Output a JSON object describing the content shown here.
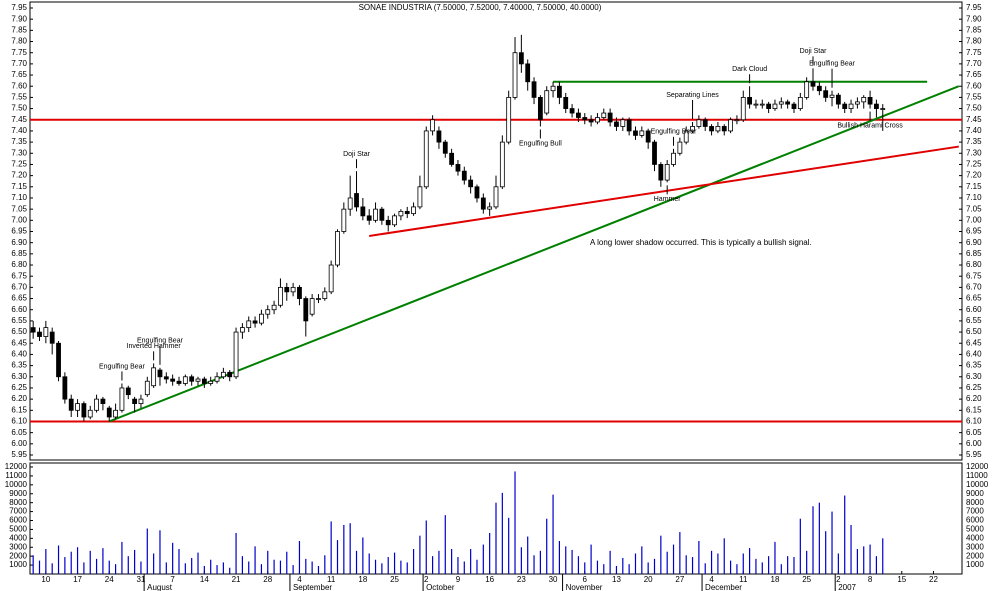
{
  "chart_data": {
    "type": "candlestick",
    "title": "SONAE INDUSTRIA (7.50000, 7.52000, 7.40000, 7.50000, 40.0000)",
    "categories": [
      null,
      null,
      "10",
      null,
      null,
      null,
      null,
      "17",
      null,
      null,
      null,
      null,
      "24",
      null,
      null,
      null,
      null,
      "31",
      null,
      null,
      null,
      null,
      "7",
      null,
      null,
      null,
      null,
      "14",
      null,
      null,
      null,
      null,
      "21",
      null,
      null,
      null,
      null,
      "28",
      null,
      null,
      null,
      null,
      "4",
      null,
      null,
      null,
      null,
      "11",
      null,
      null,
      null,
      null,
      "18",
      null,
      null,
      null,
      null,
      "25",
      null,
      null,
      null,
      null,
      "2",
      null,
      null,
      null,
      null,
      "9",
      null,
      null,
      null,
      null,
      "16",
      null,
      null,
      null,
      null,
      "23",
      null,
      null,
      null,
      null,
      "30",
      null,
      null,
      null,
      null,
      "6",
      null,
      null,
      null,
      null,
      "13",
      null,
      null,
      null,
      null,
      "20",
      null,
      null,
      null,
      null,
      "27",
      null,
      null,
      null,
      null,
      "4",
      null,
      null,
      null,
      null,
      "11",
      null,
      null,
      null,
      null,
      "18",
      null,
      null,
      null,
      null,
      "25",
      null,
      null,
      null,
      null,
      "2",
      null,
      null,
      null,
      null,
      "8",
      null,
      null,
      null,
      null,
      "15",
      null,
      null,
      null,
      null,
      "22",
      null,
      null,
      null,
      null
    ],
    "month_labels": [
      null,
      null,
      null,
      null,
      null,
      null,
      null,
      null,
      null,
      null,
      null,
      null,
      null,
      null,
      null,
      null,
      null,
      null,
      "August",
      null,
      null,
      null,
      null,
      null,
      null,
      null,
      null,
      null,
      null,
      null,
      null,
      null,
      null,
      null,
      null,
      null,
      null,
      null,
      null,
      null,
      null,
      "September",
      null,
      null,
      null,
      null,
      null,
      null,
      null,
      null,
      null,
      null,
      null,
      null,
      null,
      null,
      null,
      null,
      null,
      null,
      null,
      null,
      "October",
      null,
      null,
      null,
      null,
      null,
      null,
      null,
      null,
      null,
      null,
      null,
      null,
      null,
      null,
      null,
      null,
      null,
      null,
      null,
      null,
      null,
      "November",
      null,
      null,
      null,
      null,
      null,
      null,
      null,
      null,
      null,
      null,
      null,
      null,
      null,
      null,
      null,
      null,
      null,
      null,
      null,
      null,
      null,
      "December",
      null,
      null,
      null,
      null,
      null,
      null,
      null,
      null,
      null,
      null,
      null,
      null,
      null,
      null,
      null,
      null,
      null,
      null,
      null,
      null,
      "2007",
      null,
      null,
      null,
      null,
      null,
      null,
      null,
      null,
      null,
      null,
      null,
      null,
      null,
      null,
      null,
      null,
      null,
      null,
      null
    ],
    "open": [
      6.52,
      6.5,
      6.48,
      6.5,
      6.45,
      6.3,
      6.2,
      6.15,
      6.18,
      6.12,
      6.15,
      6.2,
      6.16,
      6.12,
      6.15,
      6.25,
      6.2,
      6.18,
      6.22,
      6.26,
      6.33,
      6.3,
      6.29,
      6.28,
      6.27,
      6.3,
      6.28,
      6.29,
      6.27,
      6.28,
      6.3,
      6.32,
      6.3,
      6.5,
      6.52,
      6.55,
      6.54,
      6.58,
      6.6,
      6.62,
      6.7,
      6.68,
      6.7,
      6.65,
      6.58,
      6.65,
      6.65,
      6.68,
      6.8,
      6.95,
      7.05,
      7.12,
      7.06,
      7.02,
      7.0,
      7.05,
      7.0,
      6.98,
      7.02,
      7.04,
      7.03,
      7.06,
      7.15,
      7.4,
      7.4,
      7.35,
      7.3,
      7.25,
      7.22,
      7.18,
      7.15,
      7.1,
      7.05,
      7.06,
      7.15,
      7.35,
      7.55,
      7.75,
      7.7,
      7.62,
      7.55,
      7.48,
      7.58,
      7.6,
      7.55,
      7.5,
      7.48,
      7.46,
      7.45,
      7.44,
      7.46,
      7.48,
      7.44,
      7.42,
      7.45,
      7.4,
      7.38,
      7.4,
      7.35,
      7.25,
      7.18,
      7.25,
      7.3,
      7.35,
      7.4,
      7.42,
      7.45,
      7.42,
      7.4,
      7.42,
      7.4,
      7.45,
      7.45,
      7.55,
      7.52,
      7.52,
      7.52,
      7.5,
      7.52,
      7.53,
      7.52,
      7.5,
      7.55,
      7.62,
      7.6,
      7.58,
      7.55,
      7.56,
      7.52,
      7.5,
      7.52,
      7.53,
      7.55,
      7.52,
      7.5,
      null,
      null,
      null,
      null,
      null,
      null,
      null,
      null,
      null,
      null,
      null,
      null
    ],
    "high": [
      6.55,
      6.52,
      6.55,
      6.52,
      6.46,
      6.32,
      6.22,
      6.2,
      6.19,
      6.17,
      6.22,
      6.21,
      6.17,
      6.18,
      6.27,
      6.26,
      6.21,
      6.22,
      6.3,
      6.36,
      6.34,
      6.32,
      6.31,
      6.3,
      6.31,
      6.31,
      6.3,
      6.3,
      6.3,
      6.32,
      6.34,
      6.33,
      6.52,
      6.54,
      6.57,
      6.57,
      6.6,
      6.62,
      6.64,
      6.74,
      6.72,
      6.72,
      6.71,
      6.66,
      6.67,
      6.67,
      6.7,
      6.82,
      6.96,
      7.08,
      7.2,
      7.22,
      7.1,
      7.05,
      7.08,
      7.06,
      7.02,
      7.03,
      7.05,
      7.06,
      7.08,
      7.2,
      7.42,
      7.47,
      7.42,
      7.36,
      7.32,
      7.27,
      7.24,
      7.2,
      7.16,
      7.12,
      7.08,
      7.2,
      7.38,
      7.58,
      7.82,
      7.83,
      7.72,
      7.64,
      7.56,
      7.6,
      7.62,
      7.62,
      7.57,
      7.52,
      7.5,
      7.48,
      7.47,
      7.48,
      7.5,
      7.5,
      7.46,
      7.46,
      7.46,
      7.42,
      7.42,
      7.41,
      7.36,
      7.26,
      7.27,
      7.32,
      7.37,
      7.42,
      7.44,
      7.47,
      7.46,
      7.43,
      7.44,
      7.43,
      7.46,
      7.47,
      7.58,
      7.6,
      7.54,
      7.54,
      7.53,
      7.54,
      7.55,
      7.54,
      7.53,
      7.57,
      7.64,
      7.68,
      7.62,
      7.6,
      7.58,
      7.57,
      7.53,
      7.54,
      7.55,
      7.56,
      7.58,
      7.54,
      7.52,
      null,
      null,
      null,
      null,
      null,
      null,
      null,
      null,
      null,
      null,
      null,
      null
    ],
    "low": [
      6.47,
      6.46,
      6.45,
      6.4,
      6.28,
      6.18,
      6.12,
      6.12,
      6.1,
      6.11,
      6.14,
      6.15,
      6.1,
      6.11,
      6.14,
      6.2,
      6.14,
      6.16,
      6.21,
      6.25,
      6.26,
      6.27,
      6.26,
      6.26,
      6.26,
      6.26,
      6.26,
      6.25,
      6.26,
      6.27,
      6.29,
      6.28,
      6.29,
      6.47,
      6.5,
      6.52,
      6.53,
      6.56,
      6.58,
      6.61,
      6.64,
      6.66,
      6.62,
      6.48,
      6.57,
      6.63,
      6.64,
      6.67,
      6.79,
      6.94,
      7.02,
      7.04,
      7.0,
      6.98,
      6.99,
      6.98,
      6.95,
      6.97,
      7.0,
      7.01,
      7.02,
      7.05,
      7.14,
      7.38,
      7.32,
      7.28,
      7.24,
      7.2,
      7.16,
      7.12,
      7.08,
      7.03,
      7.02,
      7.05,
      7.14,
      7.34,
      7.54,
      7.66,
      7.58,
      7.52,
      7.42,
      7.47,
      7.55,
      7.52,
      7.48,
      7.46,
      7.44,
      7.43,
      7.42,
      7.43,
      7.45,
      7.42,
      7.4,
      7.4,
      7.38,
      7.36,
      7.37,
      7.32,
      7.22,
      7.15,
      7.17,
      7.24,
      7.29,
      7.34,
      7.39,
      7.41,
      7.4,
      7.38,
      7.39,
      7.38,
      7.39,
      7.43,
      7.44,
      7.5,
      7.5,
      7.5,
      7.48,
      7.49,
      7.5,
      7.5,
      7.48,
      7.49,
      7.54,
      7.58,
      7.56,
      7.53,
      7.51,
      7.5,
      7.48,
      7.48,
      7.5,
      7.5,
      7.5,
      7.46,
      7.4,
      null,
      null,
      null,
      null,
      null,
      null,
      null,
      null,
      null,
      null,
      null,
      null
    ],
    "close": [
      6.5,
      6.48,
      6.52,
      6.45,
      6.3,
      6.2,
      6.15,
      6.18,
      6.12,
      6.15,
      6.2,
      6.18,
      6.12,
      6.15,
      6.25,
      6.22,
      6.18,
      6.2,
      6.28,
      6.34,
      6.3,
      6.29,
      6.28,
      6.27,
      6.3,
      6.28,
      6.29,
      6.27,
      6.28,
      6.3,
      6.32,
      6.3,
      6.5,
      6.52,
      6.55,
      6.54,
      6.58,
      6.6,
      6.62,
      6.7,
      6.68,
      6.7,
      6.65,
      6.55,
      6.65,
      6.65,
      6.68,
      6.8,
      6.95,
      7.05,
      7.1,
      7.06,
      7.02,
      7.0,
      7.05,
      7.0,
      6.98,
      7.02,
      7.04,
      7.03,
      7.06,
      7.15,
      7.4,
      7.45,
      7.35,
      7.3,
      7.25,
      7.22,
      7.18,
      7.15,
      7.1,
      7.05,
      7.06,
      7.15,
      7.35,
      7.55,
      7.75,
      7.7,
      7.62,
      7.55,
      7.45,
      7.58,
      7.6,
      7.55,
      7.5,
      7.48,
      7.46,
      7.45,
      7.44,
      7.46,
      7.48,
      7.44,
      7.42,
      7.45,
      7.4,
      7.38,
      7.4,
      7.35,
      7.25,
      7.18,
      7.25,
      7.3,
      7.35,
      7.4,
      7.42,
      7.45,
      7.42,
      7.4,
      7.42,
      7.4,
      7.45,
      7.45,
      7.55,
      7.52,
      7.52,
      7.52,
      7.5,
      7.52,
      7.53,
      7.52,
      7.5,
      7.55,
      7.62,
      7.6,
      7.58,
      7.55,
      7.56,
      7.52,
      7.5,
      7.52,
      7.53,
      7.55,
      7.52,
      7.5,
      7.5,
      null,
      null,
      null,
      null,
      null,
      null,
      null,
      null,
      null,
      null,
      null,
      null
    ],
    "volume": [
      2100,
      1500,
      2800,
      1200,
      3200,
      1900,
      2500,
      3000,
      1300,
      2600,
      1700,
      2900,
      1500,
      1100,
      3600,
      2000,
      2700,
      1400,
      5100,
      2300,
      4900,
      1300,
      3500,
      2800,
      1200,
      1800,
      2400,
      900,
      1600,
      1000,
      1300,
      700,
      4600,
      2000,
      1400,
      3100,
      1100,
      2600,
      1600,
      1500,
      2500,
      1000,
      3700,
      1700,
      1400,
      900,
      2100,
      5900,
      3800,
      5500,
      5700,
      2600,
      4100,
      2300,
      1600,
      1200,
      1900,
      2400,
      1500,
      1300,
      2800,
      4300,
      6000,
      2000,
      2600,
      6600,
      2800,
      1900,
      1400,
      2800,
      1600,
      3300,
      4600,
      8000,
      9100,
      6300,
      11500,
      3000,
      4200,
      2100,
      2600,
      6200,
      8900,
      3700,
      3100,
      2700,
      2000,
      1300,
      3300,
      1500,
      1100,
      2600,
      900,
      1800,
      1100,
      2300,
      3100,
      1300,
      1700,
      4300,
      2500,
      3300,
      4700,
      2100,
      1900,
      3700,
      1200,
      2600,
      2300,
      4000,
      1500,
      1100,
      2300,
      2900,
      1700,
      1300,
      2000,
      3600,
      1100,
      2000,
      1900,
      6200,
      2600,
      7600,
      8000,
      4800,
      7000,
      2300,
      8800,
      5500,
      2800,
      3100,
      3300,
      2000,
      4000,
      null,
      null,
      null,
      null,
      null,
      null,
      null,
      null,
      null,
      null,
      null,
      null
    ],
    "up_color": "#ffffff",
    "down_color": "#000000",
    "volume_color": "#0000cc",
    "ylim": [
      5.95,
      7.95
    ],
    "yticks": [
      5.95,
      {
        "value": 6.0,
        "label": "6.00"
      },
      6.05,
      {
        "value": 6.1,
        "label": "6.10"
      },
      6.15,
      {
        "value": 6.2,
        "label": "6.20"
      },
      6.25,
      {
        "value": 6.3,
        "label": "6.30"
      },
      6.35,
      {
        "value": 6.4,
        "label": "6.40"
      },
      6.45,
      {
        "value": 6.5,
        "label": "6.50"
      },
      6.55,
      {
        "value": 6.6,
        "label": "6.60"
      },
      6.65,
      {
        "value": 6.7,
        "label": "6.70"
      },
      6.75,
      {
        "value": 6.8,
        "label": "6.80"
      },
      6.85,
      {
        "value": 6.9,
        "label": "6.90"
      },
      6.95,
      {
        "value": 7.0,
        "label": "7.00"
      },
      7.05,
      {
        "value": 7.1,
        "label": "7.10"
      },
      7.15,
      {
        "value": 7.2,
        "label": "7.20"
      },
      7.25,
      {
        "value": 7.3,
        "label": "7.30"
      },
      7.35,
      {
        "value": 7.4,
        "label": "7.40"
      },
      7.45,
      {
        "value": 7.5,
        "label": "7.50"
      },
      7.55,
      {
        "value": 7.6,
        "label": "7.60"
      },
      7.65,
      {
        "value": 7.7,
        "label": "7.70"
      },
      7.75,
      {
        "value": 7.8,
        "label": "7.80"
      },
      7.85,
      {
        "value": 7.9,
        "label": "7.90"
      },
      7.95
    ],
    "volume_ylim": [
      0,
      12000
    ],
    "volume_yticks": [
      1000,
      2000,
      3000,
      4000,
      5000,
      6000,
      7000,
      8000,
      9000,
      10000,
      11000,
      12000
    ],
    "hlines": [
      {
        "y": 7.45,
        "color": "#e00000"
      },
      {
        "y": 6.1,
        "color": "#e00000"
      }
    ],
    "trendlines": [
      {
        "color": "#008000",
        "start": [
          12,
          6.1
        ],
        "end": [
          146,
          7.6
        ]
      },
      {
        "color": "#e00000",
        "start": [
          53,
          6.93
        ],
        "end": [
          146,
          7.33
        ]
      },
      {
        "color": "#008000",
        "start": [
          82,
          7.62
        ],
        "end": [
          141,
          7.62
        ]
      }
    ],
    "annotations": [
      {
        "text": "Engulfing Bear",
        "index": 14,
        "side": "above"
      },
      {
        "text": "Inverted Hammer",
        "index": 19,
        "side": "above"
      },
      {
        "text": "Engulfing Bear",
        "index": 20,
        "side": "above"
      },
      {
        "text": "Doji Star",
        "index": 51,
        "side": "above"
      },
      {
        "text": "Engulfing Bull",
        "index": 80,
        "side": "below"
      },
      {
        "text": "Hammer",
        "index": 100,
        "side": "below"
      },
      {
        "text": "Engulfing Bear",
        "index": 101,
        "side": "above"
      },
      {
        "text": "Separating Lines",
        "index": 104,
        "side": "above"
      },
      {
        "text": "Dark Cloud",
        "index": 113,
        "side": "above"
      },
      {
        "text": "Doji Star",
        "index": 123,
        "side": "above"
      },
      {
        "text": "Engulfing Bear",
        "index": 126,
        "side": "above"
      },
      {
        "text": "Bullish Harami Cross",
        "index": 132,
        "side": "below"
      }
    ],
    "note": "A long lower shadow occurred. This is typically a bullish signal."
  }
}
